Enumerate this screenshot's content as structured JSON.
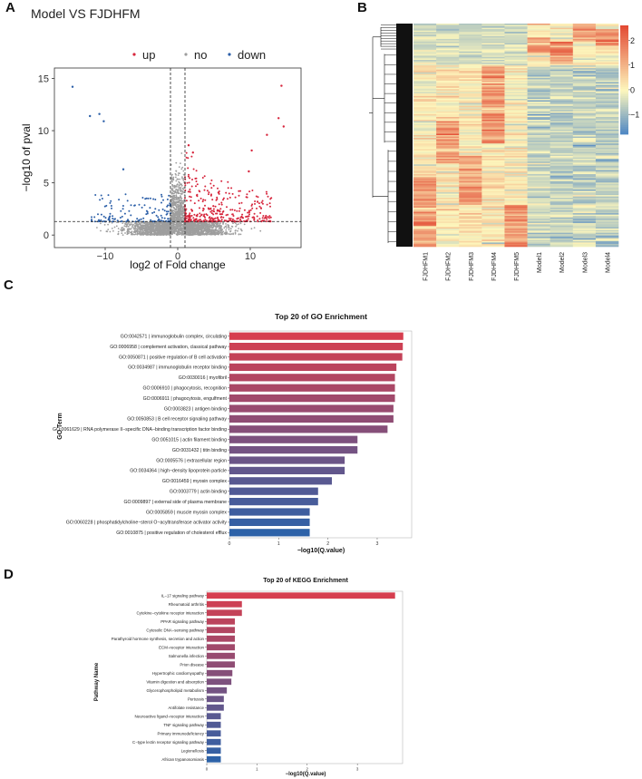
{
  "panels": {
    "a": "A",
    "b": "B",
    "c": "C",
    "d": "D"
  },
  "chart_data": [
    {
      "type": "scatter",
      "panel": "A",
      "title": "Model VS FJDHFM",
      "xlabel": "log2 of Fold change",
      "ylabel": "−log10 of pval",
      "legend": [
        "up",
        "no",
        "down"
      ],
      "legend_colors": {
        "up": "#d7263d",
        "no": "#9e9e9e",
        "down": "#2c5fa8"
      },
      "xlim": [
        -17,
        17
      ],
      "ylim": [
        -1.2,
        16
      ],
      "xticks": [
        -10,
        0,
        10
      ],
      "yticks": [
        0,
        5,
        10,
        15
      ],
      "xtick_labels": [
        "−10",
        "0",
        "10"
      ],
      "ytick_labels": [
        "0",
        "5",
        "10",
        "15"
      ],
      "fc_threshold": 1,
      "p_threshold": 1.3,
      "highlight_points": [
        {
          "x": -14.5,
          "y": 14.2,
          "group": "down"
        },
        {
          "x": -10.8,
          "y": 11.6,
          "group": "down"
        },
        {
          "x": -12.1,
          "y": 11.4,
          "group": "down"
        },
        {
          "x": -10.2,
          "y": 10.9,
          "group": "down"
        },
        {
          "x": -7.5,
          "y": 6.3,
          "group": "down"
        },
        {
          "x": 14.3,
          "y": 14.3,
          "group": "up"
        },
        {
          "x": 13.9,
          "y": 11.2,
          "group": "up"
        },
        {
          "x": 14.6,
          "y": 10.4,
          "group": "up"
        },
        {
          "x": 12.3,
          "y": 9.6,
          "group": "up"
        },
        {
          "x": 10.2,
          "y": 8.1,
          "group": "up"
        },
        {
          "x": 9.8,
          "y": 6.1,
          "group": "up"
        },
        {
          "x": 1.5,
          "y": 8.6,
          "group": "up"
        },
        {
          "x": 2.1,
          "y": 7.9,
          "group": "up"
        }
      ]
    },
    {
      "type": "heatmap",
      "panel": "B",
      "columns": [
        "FJDHFM1",
        "FJDHFM2",
        "FJDHFM3",
        "FJDHFM4",
        "FJDHFM5",
        "Model1",
        "Model2",
        "Model3",
        "Model4"
      ],
      "colorbar_ticks": [
        2,
        1,
        0,
        -1
      ],
      "colorbar_labels": [
        "2",
        "1",
        "0",
        "−1"
      ],
      "color_range": [
        -1.8,
        2.6
      ],
      "colors": {
        "low": "#4a84c4",
        "mid": "#fdf7bd",
        "high": "#e34a33"
      }
    },
    {
      "type": "bar",
      "panel": "C",
      "orientation": "horizontal",
      "title": "Top 20 of GO Enrichment",
      "xlabel": "−log10(Q.value)",
      "ylabel": "GO Term",
      "xlim": [
        0,
        3.7
      ],
      "xticks": [
        "0",
        "1",
        "2",
        "3"
      ],
      "categories": [
        "GO:0042571 | immunoglobulin complex, circulating",
        "GO:0006958 | complement activation, classical pathway",
        "GO:0050871 | positive regulation of B cell activation",
        "GO:0034987 | immunoglobulin receptor binding",
        "GO:0030016 | myofibril",
        "GO:0006910 | phagocytosis, recognition",
        "GO:0006911 | phagocytosis, engulfment",
        "GO:0003823 | antigen binding",
        "GO:0050853 | B cell receptor signaling pathway",
        "GO:0061629 | RNA polymerase II−specific DNA−binding transcription factor binding",
        "GO:0051015 | actin filament binding",
        "GO:0031432 | titin binding",
        "GO:0005576 | extracellular region",
        "GO:0034364 | high−density lipoprotein particle",
        "GO:0016459 | myosin complex",
        "GO:0003779 | actin binding",
        "GO:0009897 | external side of plasma membrane",
        "GO:0005859 | muscle myosin complex",
        "GO:0060228 | phosphatidylcholine−sterol O−acyltransferase activator activity",
        "GO:0010875 | positive regulation of cholesterol efflux"
      ],
      "values": [
        3.53,
        3.52,
        3.51,
        3.39,
        3.36,
        3.36,
        3.36,
        3.33,
        3.33,
        3.21,
        2.6,
        2.6,
        2.34,
        2.34,
        2.08,
        1.8,
        1.8,
        1.63,
        1.63,
        1.63
      ]
    },
    {
      "type": "bar",
      "panel": "D",
      "orientation": "horizontal",
      "title": "Top 20 of KEGG Enrichment",
      "xlabel": "−log10(Q.value)",
      "ylabel": "Pathway Name",
      "xlim": [
        0,
        3.9
      ],
      "xticks": [
        "0",
        "1",
        "2",
        "3"
      ],
      "categories": [
        "IL−17 signaling pathway",
        "Rheumatoid arthritis",
        "Cytokine−cytokine receptor interaction",
        "PPAR signaling pathway",
        "Cytosolic DNA−sensing pathway",
        "Parathyroid hormone synthesis, secretion and action",
        "ECM−receptor interaction",
        "Salmonella infection",
        "Prion disease",
        "Hypertrophic cardiomyopathy",
        "Vitamin digestion and absorption",
        "Glycerophospholipid metabolism",
        "Pertussis",
        "Antifolate resistance",
        "Neuroactive ligand−receptor interaction",
        "TNF signaling pathway",
        "Primary immunodeficiency",
        "C−type lectin receptor signaling pathway",
        "Legionellosis",
        "African trypanosomiasis"
      ],
      "values": [
        3.75,
        0.7,
        0.7,
        0.56,
        0.56,
        0.56,
        0.56,
        0.56,
        0.56,
        0.51,
        0.49,
        0.4,
        0.34,
        0.34,
        0.28,
        0.28,
        0.28,
        0.28,
        0.28,
        0.28
      ]
    }
  ]
}
